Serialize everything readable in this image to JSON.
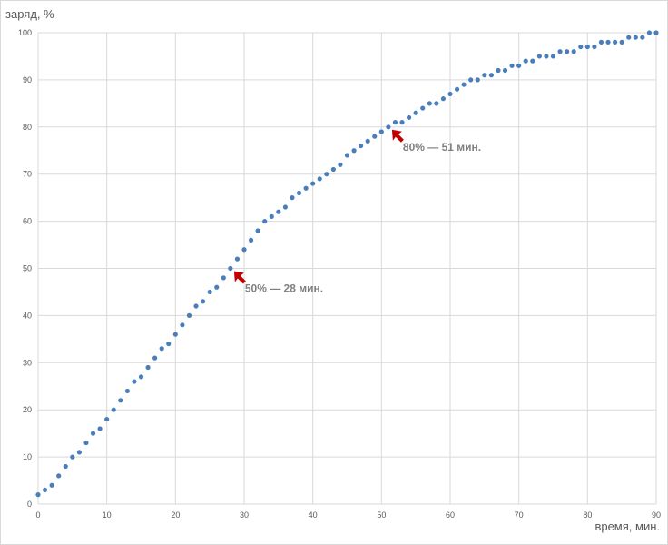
{
  "chart_data": {
    "type": "scatter",
    "title": "",
    "xlabel": "время, мин.",
    "ylabel": "заряд, %",
    "xlim": [
      0,
      90
    ],
    "ylim": [
      0,
      100
    ],
    "xticks": [
      0,
      10,
      20,
      30,
      40,
      50,
      60,
      70,
      80,
      90
    ],
    "yticks": [
      0,
      10,
      20,
      30,
      40,
      50,
      60,
      70,
      80,
      90,
      100
    ],
    "grid": true,
    "legend": "none",
    "colors": {
      "series": "#4a7ebb",
      "annotation_arrow": "#c00000",
      "grid": "#d9d9d9"
    },
    "series": [
      {
        "x": [
          0,
          1,
          2,
          3,
          4,
          5,
          6,
          7,
          8,
          9,
          10,
          11,
          12,
          13,
          14,
          15,
          16,
          17,
          18,
          19,
          20,
          21,
          22,
          23,
          24,
          25,
          26,
          27,
          28,
          29,
          30,
          31,
          32,
          33,
          34,
          35,
          36,
          37,
          38,
          39,
          40,
          41,
          42,
          43,
          44,
          45,
          46,
          47,
          48,
          49,
          50,
          51,
          52,
          53,
          54,
          55,
          56,
          57,
          58,
          59,
          60,
          61,
          62,
          63,
          64,
          65,
          66,
          67,
          68,
          69,
          70,
          71,
          72,
          73,
          74,
          75,
          76,
          77,
          78,
          79,
          80,
          81,
          82,
          83,
          84,
          85,
          86,
          87,
          88,
          89,
          90
        ],
        "y": [
          2,
          3,
          4,
          6,
          8,
          10,
          11,
          13,
          15,
          16,
          18,
          20,
          22,
          24,
          26,
          27,
          29,
          31,
          33,
          34,
          36,
          38,
          40,
          42,
          43,
          45,
          46,
          48,
          50,
          52,
          54,
          56,
          58,
          60,
          61,
          62,
          63,
          65,
          66,
          67,
          68,
          69,
          70,
          71,
          72,
          74,
          75,
          76,
          77,
          78,
          79,
          80,
          81,
          81,
          82,
          83,
          84,
          85,
          85,
          86,
          87,
          88,
          89,
          90,
          90,
          91,
          91,
          92,
          92,
          93,
          93,
          94,
          94,
          95,
          95,
          95,
          96,
          96,
          96,
          97,
          97,
          97,
          98,
          98,
          98,
          98,
          99,
          99,
          99,
          100,
          100
        ]
      }
    ],
    "annotations": [
      {
        "text": "50% — 28 мин.",
        "x": 28,
        "y": 50
      },
      {
        "text": "80% — 51 мин.",
        "x": 51,
        "y": 80
      }
    ]
  }
}
